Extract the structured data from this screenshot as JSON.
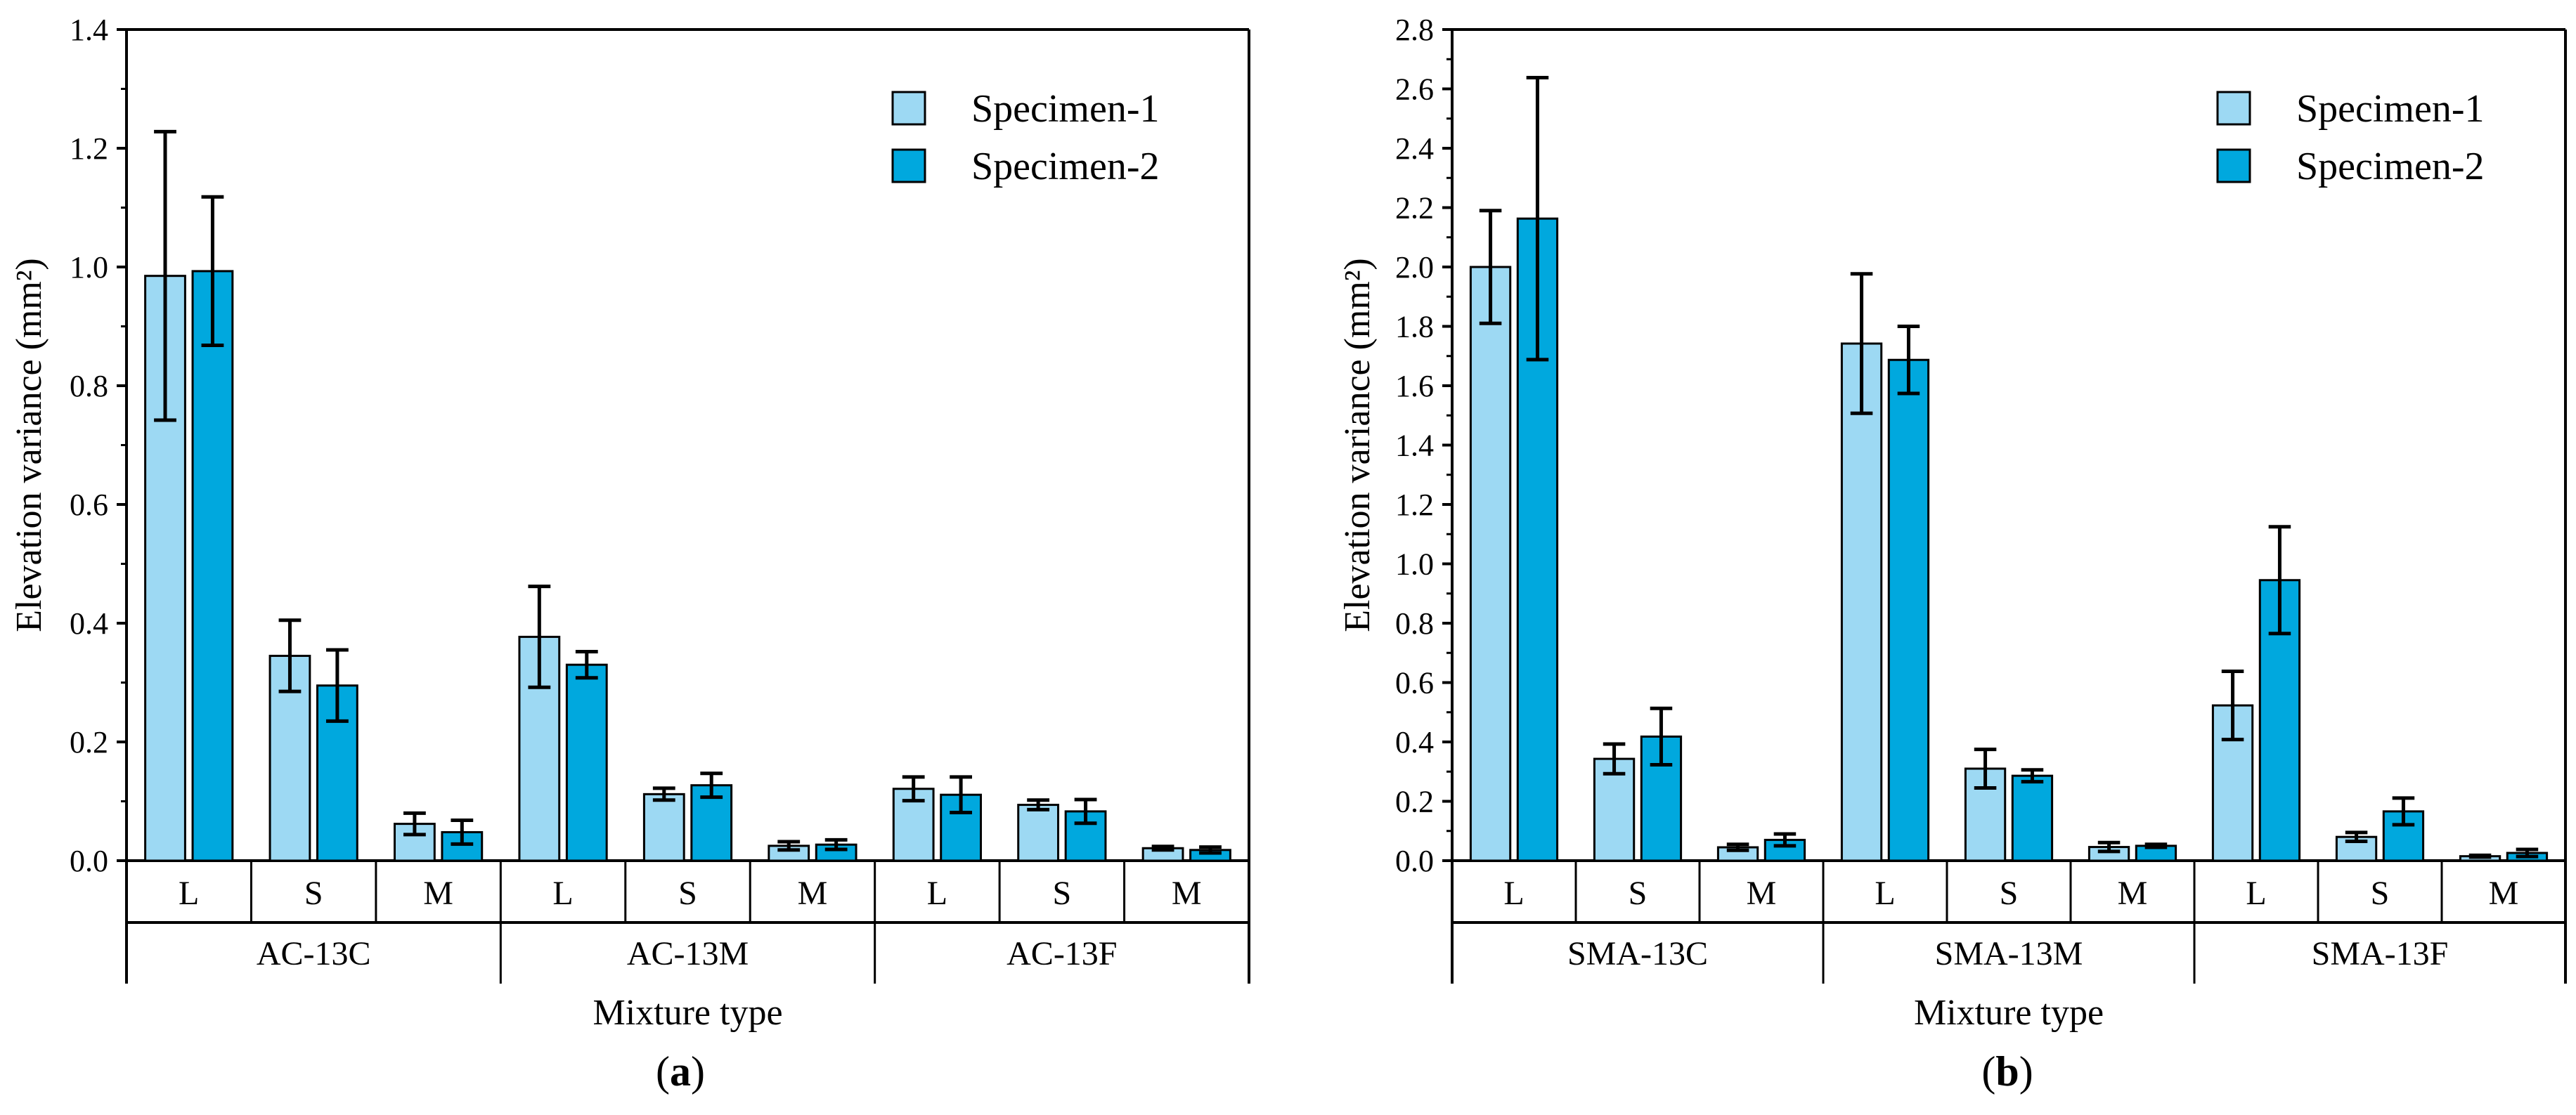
{
  "colors": {
    "specimen1": "#9dd9f3",
    "specimen2": "#00a8de",
    "axis": "#000000"
  },
  "chart_data": [
    {
      "type": "bar",
      "panel_label": "(a)",
      "ylabel": "Elevation variance (mm²)",
      "xlabel": "Mixture type",
      "ylim": [
        0,
        1.4
      ],
      "ymin_display": -0.19,
      "yticks": [
        0.0,
        0.2,
        0.4,
        0.6,
        0.8,
        1.0,
        1.2,
        1.4
      ],
      "ytick_labels": [
        "0.0",
        "0.2",
        "0.4",
        "0.6",
        "0.8",
        "1.0",
        "1.2",
        "1.4"
      ],
      "minor_tick_step": 0.1,
      "groups": [
        "AC-13C",
        "AC-13M",
        "AC-13F"
      ],
      "subcategories": [
        "L",
        "S",
        "M",
        "L",
        "S",
        "M",
        "L",
        "S",
        "M"
      ],
      "legend": {
        "position": "top-right"
      },
      "series": [
        {
          "name": "Specimen-1",
          "values": [
            0.985,
            0.345,
            0.062,
            0.377,
            0.112,
            0.025,
            0.121,
            0.094,
            0.021
          ],
          "errors": [
            0.243,
            0.06,
            0.018,
            0.085,
            0.01,
            0.007,
            0.02,
            0.008,
            0.003
          ]
        },
        {
          "name": "Specimen-2",
          "values": [
            0.993,
            0.295,
            0.048,
            0.33,
            0.127,
            0.027,
            0.111,
            0.083,
            0.018
          ],
          "errors": [
            0.125,
            0.06,
            0.02,
            0.022,
            0.02,
            0.008,
            0.03,
            0.02,
            0.005
          ]
        }
      ]
    },
    {
      "type": "bar",
      "panel_label": "(b)",
      "ylabel": "Elevation variance (mm²)",
      "xlabel": "Mixture type",
      "ylim": [
        0,
        2.8
      ],
      "ymin_display": -0.38,
      "yticks": [
        0.0,
        0.2,
        0.4,
        0.6,
        0.8,
        1.0,
        1.2,
        1.4,
        1.6,
        1.8,
        2.0,
        2.2,
        2.4,
        2.6,
        2.8
      ],
      "ytick_labels": [
        "0.0",
        "0.2",
        "0.4",
        "0.6",
        "0.8",
        "1.0",
        "1.2",
        "1.4",
        "1.6",
        "1.8",
        "2.0",
        "2.2",
        "2.4",
        "2.6",
        "2.8"
      ],
      "minor_tick_step": 0.1,
      "groups": [
        "SMA-13C",
        "SMA-13M",
        "SMA-13F"
      ],
      "subcategories": [
        "L",
        "S",
        "M",
        "L",
        "S",
        "M",
        "L",
        "S",
        "M"
      ],
      "legend": {
        "position": "top-right"
      },
      "series": [
        {
          "name": "Specimen-1",
          "values": [
            2.0,
            0.343,
            0.045,
            1.742,
            0.31,
            0.046,
            0.523,
            0.08,
            0.015
          ],
          "errors": [
            0.19,
            0.05,
            0.01,
            0.235,
            0.065,
            0.015,
            0.115,
            0.015,
            0.003
          ]
        },
        {
          "name": "Specimen-2",
          "values": [
            2.163,
            0.418,
            0.07,
            1.687,
            0.286,
            0.05,
            0.945,
            0.166,
            0.026
          ],
          "errors": [
            0.475,
            0.095,
            0.02,
            0.113,
            0.02,
            0.005,
            0.18,
            0.045,
            0.012
          ]
        }
      ]
    }
  ]
}
